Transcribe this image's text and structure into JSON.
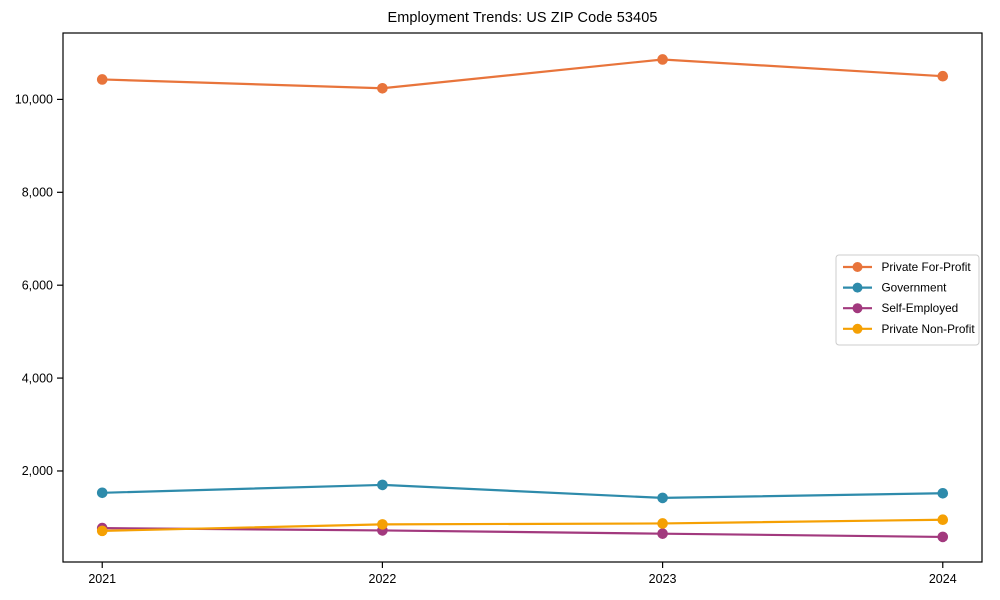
{
  "figure": {
    "background": "#ffffff",
    "spine_color": "#000000",
    "text_color": "#000000"
  },
  "chart_data": {
    "type": "line",
    "title": "Employment Trends: US ZIP Code 53405",
    "xlabel": "",
    "ylabel": "",
    "x": [
      2021,
      2022,
      2023,
      2024
    ],
    "x_tick_labels": [
      "2021",
      "2022",
      "2023",
      "2024"
    ],
    "yticks": [
      2000,
      4000,
      6000,
      8000,
      10000
    ],
    "y_tick_labels": [
      "2,000",
      "4,000",
      "6,000",
      "8,000",
      "10,000"
    ],
    "xlim": [
      2020.86,
      2024.14
    ],
    "ylim": [
      40,
      11430
    ],
    "grid": false,
    "series": [
      {
        "name": "Private For-Profit",
        "color": "#E8743B",
        "values": [
          10430,
          10240,
          10860,
          10500
        ]
      },
      {
        "name": "Government",
        "color": "#2E8BAB",
        "values": [
          1530,
          1700,
          1420,
          1520
        ]
      },
      {
        "name": "Self-Employed",
        "color": "#A2397E",
        "values": [
          770,
          720,
          650,
          580
        ]
      },
      {
        "name": "Private Non-Profit",
        "color": "#F5A003",
        "values": [
          710,
          850,
          870,
          950
        ]
      }
    ],
    "legend": {
      "position": "center-right",
      "background": "#ffffff",
      "border_color": "#cccccc",
      "labels": [
        "Private For-Profit",
        "Government",
        "Self-Employed",
        "Private Non-Profit"
      ]
    }
  }
}
